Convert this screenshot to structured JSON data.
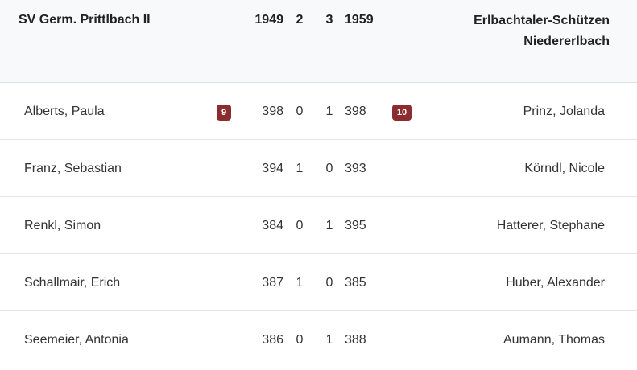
{
  "header": {
    "home_team": "SV Germ. Prittlbach II",
    "home_total": "1949",
    "home_points": "2",
    "away_points": "3",
    "away_total": "1959",
    "away_team_line1": "Erlbachtaler-Schützen",
    "away_team_line2": "Niedererlbach"
  },
  "badge_color": "#8b2c2f",
  "rows": [
    {
      "home": "Alberts, Paula",
      "home_badge": "9",
      "home_score": "398",
      "home_pts": "0",
      "away_pts": "1",
      "away_score": "398",
      "away_badge": "10",
      "away": "Prinz, Jolanda"
    },
    {
      "home": "Franz, Sebastian",
      "home_badge": "",
      "home_score": "394",
      "home_pts": "1",
      "away_pts": "0",
      "away_score": "393",
      "away_badge": "",
      "away": "Körndl, Nicole"
    },
    {
      "home": "Renkl, Simon",
      "home_badge": "",
      "home_score": "384",
      "home_pts": "0",
      "away_pts": "1",
      "away_score": "395",
      "away_badge": "",
      "away": "Hatterer, Stephane"
    },
    {
      "home": "Schallmair, Erich",
      "home_badge": "",
      "home_score": "387",
      "home_pts": "1",
      "away_pts": "0",
      "away_score": "385",
      "away_badge": "",
      "away": "Huber, Alexander"
    },
    {
      "home": "Seemeier, Antonia",
      "home_badge": "",
      "home_score": "386",
      "home_pts": "0",
      "away_pts": "1",
      "away_score": "388",
      "away_badge": "",
      "away": "Aumann, Thomas"
    }
  ]
}
